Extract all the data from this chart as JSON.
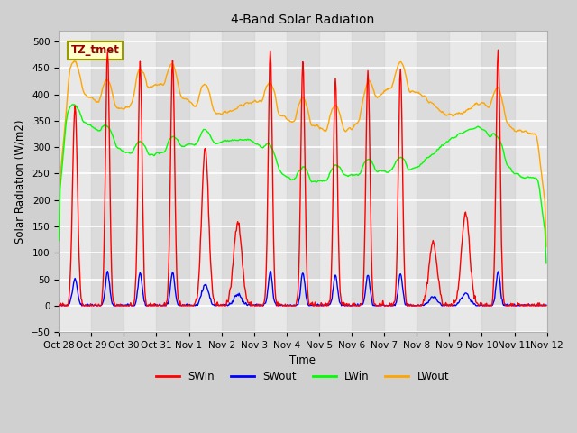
{
  "title": "4-Band Solar Radiation",
  "xlabel": "Time",
  "ylabel": "Solar Radiation (W/m2)",
  "ylim": [
    -50,
    520
  ],
  "yticks": [
    -50,
    0,
    50,
    100,
    150,
    200,
    250,
    300,
    350,
    400,
    450,
    500
  ],
  "colors": {
    "SWin": "#ff0000",
    "SWout": "#0000ff",
    "LWin": "#00ff00",
    "LWout": "#ffa500"
  },
  "annotation_text": "TZ_tmet",
  "annotation_color": "#990000",
  "annotation_bg": "#ffffcc",
  "annotation_edge": "#999900",
  "fig_bg": "#d0d0d0",
  "plot_bg": "#e8e8e8",
  "grid_color": "#ffffff",
  "xtick_labels": [
    "Oct 28",
    "Oct 29",
    "Oct 30",
    "Oct 31",
    "Nov 1",
    "Nov 2",
    "Nov 3",
    "Nov 4",
    "Nov 5",
    "Nov 6",
    "Nov 7",
    "Nov 8",
    "Nov 9",
    "Nov 10",
    "Nov 11",
    "Nov 12"
  ],
  "n_days": 15,
  "seed": 42
}
